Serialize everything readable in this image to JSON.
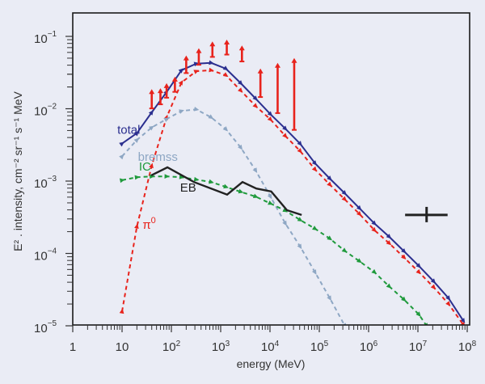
{
  "chart_data": {
    "type": "line",
    "title": "",
    "xlabel": "energy (MeV)",
    "ylabel": "E² . intensity, cm⁻² sr⁻¹ s⁻¹ MeV",
    "xscale": "log",
    "yscale": "log",
    "xlim": [
      1,
      100000000
    ],
    "ylim": [
      1e-05,
      0.15
    ],
    "grid": false,
    "x_ticks": [
      {
        "value": 1,
        "base": "1",
        "exp": ""
      },
      {
        "value": 10,
        "base": "10",
        "exp": ""
      },
      {
        "value": 100,
        "base": "10",
        "exp": "2"
      },
      {
        "value": 1000,
        "base": "10",
        "exp": "3"
      },
      {
        "value": 10000,
        "base": "10",
        "exp": "4"
      },
      {
        "value": 100000,
        "base": "10",
        "exp": "5"
      },
      {
        "value": 1000000,
        "base": "10",
        "exp": "6"
      },
      {
        "value": 10000000,
        "base": "10",
        "exp": "7"
      },
      {
        "value": 100000000,
        "base": "10",
        "exp": "8"
      }
    ],
    "y_ticks": [
      {
        "value": 0.1,
        "base": "10",
        "exp": "−1"
      },
      {
        "value": 0.01,
        "base": "10",
        "exp": "−2"
      },
      {
        "value": 0.001,
        "base": "10",
        "exp": "−3"
      },
      {
        "value": 0.0001,
        "base": "10",
        "exp": "−4"
      },
      {
        "value": 1e-05,
        "base": "10",
        "exp": "−5"
      }
    ],
    "series": [
      {
        "name": "total",
        "label": "total",
        "color": "#2b2f8f",
        "style": "solid",
        "marker": "triangle",
        "label_at": [
          8,
          0.0045
        ],
        "x": [
          10,
          20,
          40,
          80,
          160,
          320,
          640,
          1280,
          2560,
          5120,
          10240,
          20480,
          40960,
          81920,
          163840,
          327680,
          655360,
          1310720,
          2621440,
          5242880,
          10485760,
          20971520,
          41943040,
          83886080
        ],
        "y": [
          0.0033,
          0.0046,
          0.0089,
          0.017,
          0.034,
          0.042,
          0.043,
          0.0357,
          0.0225,
          0.0138,
          0.0084,
          0.0053,
          0.00327,
          0.00176,
          0.00108,
          0.00068,
          0.00042,
          0.00026,
          0.00017,
          0.000107,
          6.7e-05,
          4.1e-05,
          2.4e-05,
          1.17e-05
        ]
      },
      {
        "name": "pi0",
        "label": "π",
        "label_sup": "0",
        "color": "#e8231c",
        "style": "dashed",
        "marker": "triangle",
        "label_at": [
          26,
          0.00022
        ],
        "x": [
          10,
          20,
          40,
          80,
          160,
          320,
          640,
          1280,
          2560,
          5120,
          10240,
          20480,
          40960,
          81920,
          163840,
          327680,
          655360,
          1310720,
          2621440,
          5242880,
          10485760,
          20971520,
          41943040,
          83886080
        ],
        "y": [
          1.58e-05,
          0.000237,
          0.00163,
          0.0076,
          0.023,
          0.033,
          0.034,
          0.029,
          0.0178,
          0.0109,
          0.0071,
          0.0042,
          0.0026,
          0.00145,
          0.00089,
          0.00056,
          0.00035,
          0.00021,
          0.000138,
          8.8e-05,
          5.5e-05,
          3.4e-05,
          2e-05,
          1.03e-05
        ]
      },
      {
        "name": "bremss",
        "label": "bremss",
        "color": "#8ea7c4",
        "style": "dashed",
        "marker": "triangle",
        "label_at": [
          21,
          0.0019
        ],
        "x": [
          10,
          20,
          40,
          80,
          160,
          320,
          640,
          1280,
          2560,
          5120,
          10240,
          20480,
          40960,
          81920,
          163840,
          330000
        ],
        "y": [
          0.0022,
          0.0037,
          0.0055,
          0.0072,
          0.0093,
          0.0098,
          0.0076,
          0.0052,
          0.0029,
          0.0014,
          0.00061,
          0.00026,
          0.000124,
          5.5e-05,
          2.4e-05,
          1e-05
        ]
      },
      {
        "name": "IC",
        "label": "IC",
        "color": "#1f9a3c",
        "style": "dashed",
        "marker": "triangle",
        "label_at": [
          22,
          0.0014
        ],
        "x": [
          10,
          20,
          40,
          80,
          160,
          320,
          640,
          1280,
          2560,
          5120,
          10240,
          20480,
          40960,
          81920,
          163840,
          327680,
          655360,
          1310720,
          2621440,
          5242880,
          10485760,
          15000000
        ],
        "y": [
          0.00103,
          0.00113,
          0.00116,
          0.00116,
          0.00113,
          0.00105,
          0.00097,
          0.00083,
          0.00071,
          0.00061,
          0.00049,
          0.00039,
          0.00029,
          0.00022,
          0.00016,
          0.000109,
          7.8e-05,
          5.5e-05,
          3.5e-05,
          2.3e-05,
          1.43e-05,
          1e-05
        ]
      },
      {
        "name": "EB",
        "label": "EB",
        "color": "#222222",
        "style": "solid",
        "marker": "none",
        "label_at": [
          150,
          0.00072
        ],
        "x": [
          39,
          83,
          288,
          1350,
          2770,
          5280,
          10600,
          22100,
          43900
        ],
        "y": [
          0.0012,
          0.00155,
          0.00097,
          0.00065,
          0.00097,
          0.00079,
          0.00072,
          0.000396,
          0.00034
        ]
      }
    ],
    "upper_limits": {
      "color": "#e8231c",
      "x": [
        40,
        60,
        80,
        118,
        200,
        360,
        680,
        1330,
        2700,
        6400,
        14300,
        31000
      ],
      "y_low": [
        0.0101,
        0.0115,
        0.0142,
        0.0171,
        0.0311,
        0.0405,
        0.052,
        0.056,
        0.045,
        0.0145,
        0.0087,
        0.0051
      ],
      "y_high": [
        0.0182,
        0.0187,
        0.022,
        0.027,
        0.053,
        0.067,
        0.083,
        0.088,
        0.073,
        0.035,
        0.042,
        0.049
      ]
    },
    "marker_cross": {
      "color": "#222222",
      "x": 15000000,
      "y": 0.00034,
      "x_low": 5500000,
      "x_high": 40000000,
      "y_low": 0.00027,
      "y_high": 0.00044
    }
  }
}
